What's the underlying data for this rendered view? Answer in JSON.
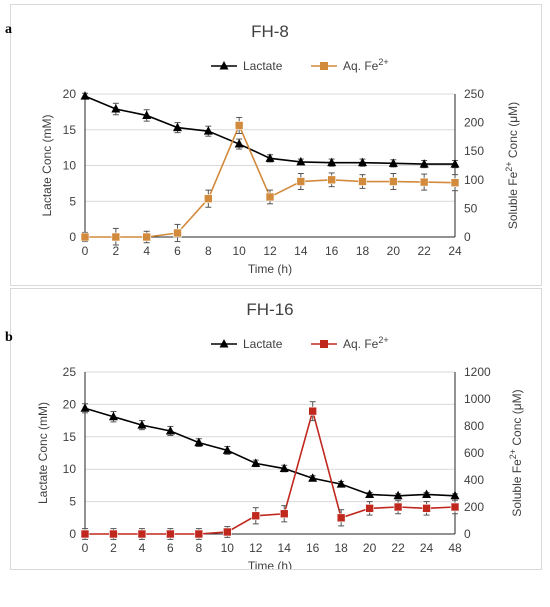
{
  "colors": {
    "lactate": "#000000",
    "iron_fh8": "#d28a3c",
    "iron_fh16": "#c0281e",
    "grid": "#d9d9d9",
    "axis_text": "#404040"
  },
  "chart_data": [
    {
      "panel_label": "a",
      "type": "line",
      "title": "FH-8",
      "xlabel": "Time (h)",
      "ylabel": "Lactate Conc (mM)",
      "y2label_parts": [
        "Soluble Fe",
        "2+",
        " Conc (μM)"
      ],
      "x_ticks": [
        "0",
        "2",
        "4",
        "6",
        "8",
        "10",
        "12",
        "14",
        "16",
        "18",
        "20",
        "22",
        "24"
      ],
      "ylim": [
        0,
        20
      ],
      "y_ticks": [
        0,
        5,
        10,
        15,
        20
      ],
      "y2lim": [
        0,
        250
      ],
      "y2_ticks": [
        0,
        50,
        100,
        150,
        200,
        250
      ],
      "legend_position": "top-center",
      "series": [
        {
          "name": "Lactate",
          "axis": "left",
          "marker": "triangle",
          "color": "#000000",
          "values": [
            19.7,
            17.9,
            17.0,
            15.3,
            14.8,
            13.0,
            11.0,
            10.5,
            10.4,
            10.4,
            10.3,
            10.2,
            10.2
          ],
          "err": [
            0.4,
            0.8,
            0.8,
            0.7,
            0.7,
            0.7,
            0.5,
            0.4,
            0.5,
            0.5,
            0.5,
            0.5,
            0.5
          ]
        },
        {
          "name": "Aq. Fe2+",
          "name_parts": [
            "Aq. Fe",
            "2+"
          ],
          "axis": "right",
          "marker": "square",
          "color": "#d28a3c",
          "values": [
            0,
            0,
            0,
            7,
            67,
            195,
            70,
            97,
            100,
            97,
            97,
            96,
            95
          ],
          "err": [
            8,
            15,
            10,
            15,
            15,
            14,
            12,
            14,
            12,
            12,
            14,
            14,
            14
          ]
        }
      ]
    },
    {
      "panel_label": "b",
      "type": "line",
      "title": "FH-16",
      "xlabel": "Time (h)",
      "ylabel": "Lactate Conc (mM)",
      "y2label_parts": [
        "Soluble Fe",
        "2+",
        " Conc (μM)"
      ],
      "x_ticks": [
        "0",
        "2",
        "4",
        "6",
        "8",
        "10",
        "12",
        "14",
        "16",
        "18",
        "20",
        "22",
        "24",
        "48"
      ],
      "ylim": [
        0,
        25
      ],
      "y_ticks": [
        0,
        5,
        10,
        15,
        20,
        25
      ],
      "y2lim": [
        0,
        1200
      ],
      "y2_ticks": [
        0,
        200,
        400,
        600,
        800,
        1000,
        1200
      ],
      "legend_position": "top-center",
      "series": [
        {
          "name": "Lactate",
          "axis": "left",
          "marker": "triangle",
          "color": "#000000",
          "values": [
            19.4,
            18.1,
            16.8,
            15.9,
            14.1,
            12.9,
            10.9,
            10.1,
            8.6,
            7.7,
            6.1,
            5.9,
            6.1,
            5.9
          ],
          "err": [
            0.7,
            0.8,
            0.7,
            0.7,
            0.6,
            0.6,
            0.5,
            0.5,
            0.4,
            0.4,
            0.3,
            0.3,
            0.3,
            0.3
          ]
        },
        {
          "name": "Aq. Fe2+",
          "name_parts": [
            "Aq. Fe",
            "2+"
          ],
          "axis": "right",
          "marker": "square",
          "color": "#c0281e",
          "values": [
            0,
            0,
            0,
            0,
            0,
            15,
            135,
            150,
            910,
            120,
            190,
            200,
            190,
            200
          ],
          "err": [
            40,
            40,
            40,
            40,
            40,
            40,
            60,
            60,
            70,
            60,
            50,
            50,
            50,
            50
          ]
        }
      ]
    }
  ]
}
